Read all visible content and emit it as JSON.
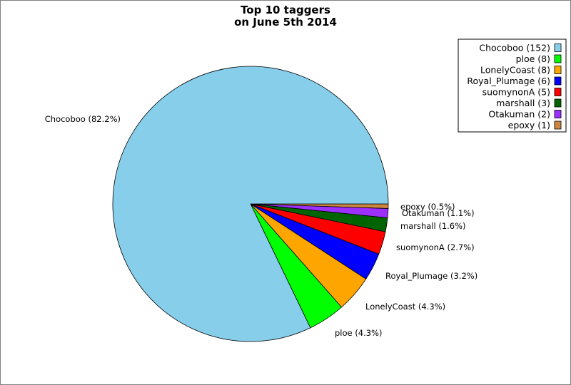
{
  "chart_data": {
    "type": "pie",
    "title": "Top 10 taggers",
    "subtitle": "on June 5th 2014",
    "legend_position": "top-right",
    "slices": [
      {
        "name": "Chocoboo",
        "value": 152,
        "legend": "Chocoboo (152)",
        "label": "Chocoboo (82.2%)",
        "color": "#87ceeb"
      },
      {
        "name": "ploe",
        "value": 8,
        "legend": "ploe (8)",
        "label": "ploe (4.3%)",
        "color": "#00ff00"
      },
      {
        "name": "LonelyCoast",
        "value": 8,
        "legend": "LonelyCoast (8)",
        "label": "LonelyCoast (4.3%)",
        "color": "#ffa500"
      },
      {
        "name": "Royal_Plumage",
        "value": 6,
        "legend": "Royal_Plumage (6)",
        "label": "Royal_Plumage (3.2%)",
        "color": "#0000ff"
      },
      {
        "name": "suomynonA",
        "value": 5,
        "legend": "suomynonA (5)",
        "label": "suomynonA (2.7%)",
        "color": "#ff0000"
      },
      {
        "name": "marshall",
        "value": 3,
        "legend": "marshall (3)",
        "label": "marshall (1.6%)",
        "color": "#006400"
      },
      {
        "name": "Otakuman",
        "value": 2,
        "legend": "Otakuman (2)",
        "label": "Otakuman (1.1%)",
        "color": "#9b30ff"
      },
      {
        "name": "epoxy",
        "value": 1,
        "legend": "epoxy (1)",
        "label": "epoxy (0.5%)",
        "color": "#cd853f"
      }
    ]
  }
}
